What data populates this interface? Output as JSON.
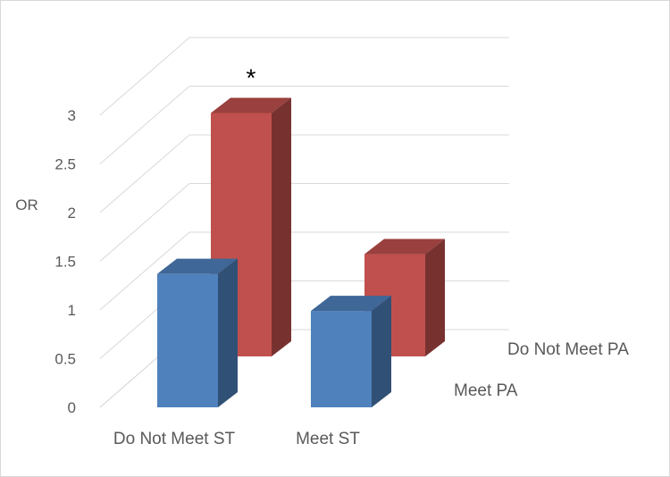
{
  "chart_data": {
    "type": "bar",
    "categories": [
      "Do Not Meet ST",
      "Meet ST"
    ],
    "series": [
      {
        "name": "Meet PA",
        "values": [
          1.37,
          0.99
        ],
        "color": "#4F81BD"
      },
      {
        "name": "Do Not Meet PA",
        "values": [
          2.5,
          1.05
        ],
        "color": "#C0504D"
      }
    ],
    "ylabel": "OR",
    "ylim": [
      0,
      3
    ],
    "yticks": [
      "0",
      "0.5",
      "1",
      "1.5",
      "2",
      "2.5",
      "3"
    ],
    "grid": true,
    "annotations": [
      {
        "text": "*",
        "category": "Do Not Meet ST",
        "series": "Do Not Meet PA"
      }
    ]
  }
}
